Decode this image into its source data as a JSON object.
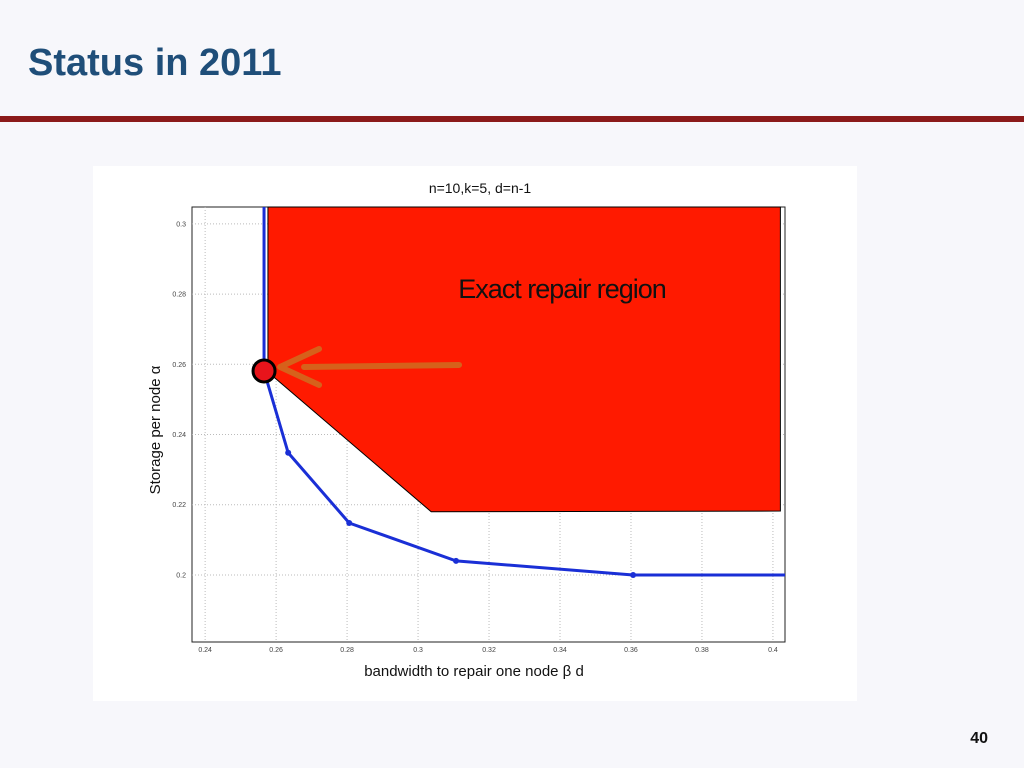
{
  "slide": {
    "title": "Status in 2011",
    "page_number": "40"
  },
  "chart_data": {
    "type": "line",
    "title": "n=10,k=5, d=n-1",
    "x_label": "bandwidth to repair one node β d",
    "y_label": "Storage per node α",
    "xlim": [
      0.2363,
      0.4034
    ],
    "ylim": [
      0.1809,
      0.3048
    ],
    "xticks": [
      0.24,
      0.26,
      0.28,
      0.3,
      0.32,
      0.34,
      0.36,
      0.38,
      0.4
    ],
    "yticks": [
      0.2,
      0.22,
      0.24,
      0.26,
      0.28,
      0.3
    ],
    "grid": true,
    "series": [
      {
        "name": "Exact repair region",
        "color": "#ff1a00",
        "fill": true,
        "x": [
          0.2577,
          0.4021,
          0.4021,
          0.3037,
          0.2577
        ],
        "values": [
          0.3048,
          0.3048,
          0.2182,
          0.218,
          0.2578
        ]
      },
      {
        "color": "#1a2fd6",
        "x": [
          0.2566,
          0.2566,
          0.2634,
          0.2806,
          0.3107,
          0.3606,
          0.4034
        ],
        "values": [
          0.3048,
          0.2581,
          0.2348,
          0.2148,
          0.204,
          0.2,
          0.2
        ]
      }
    ]
  }
}
